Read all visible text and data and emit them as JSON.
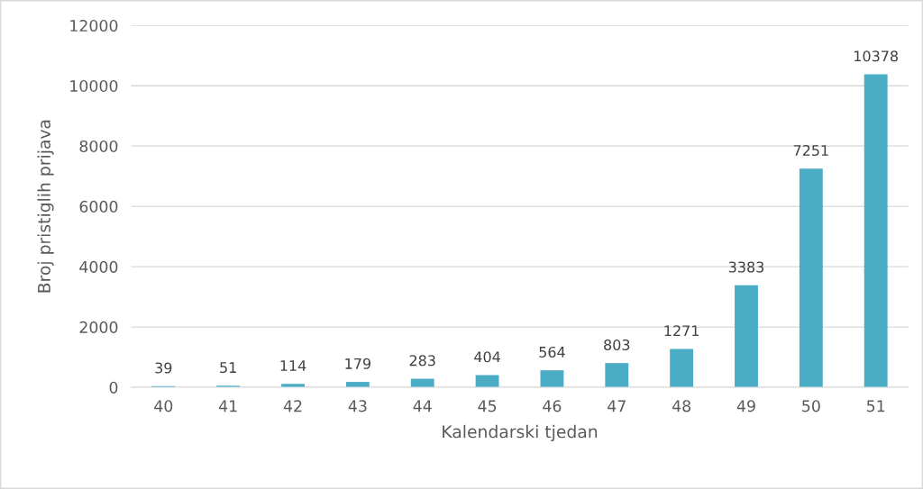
{
  "chart_data": {
    "type": "bar",
    "xlabel": "Kalendarski tjedan",
    "ylabel": "Broj pristiglih prijava",
    "categories": [
      "40",
      "41",
      "42",
      "43",
      "44",
      "45",
      "46",
      "47",
      "48",
      "49",
      "50",
      "51"
    ],
    "values": [
      39,
      51,
      114,
      179,
      283,
      404,
      564,
      803,
      1271,
      3383,
      7251,
      10378
    ],
    "color": "#4bacc6",
    "ylim": [
      0,
      12000
    ],
    "yticks": [
      0,
      2000,
      4000,
      6000,
      8000,
      10000,
      12000
    ],
    "grid": "y",
    "data_labels": true
  }
}
